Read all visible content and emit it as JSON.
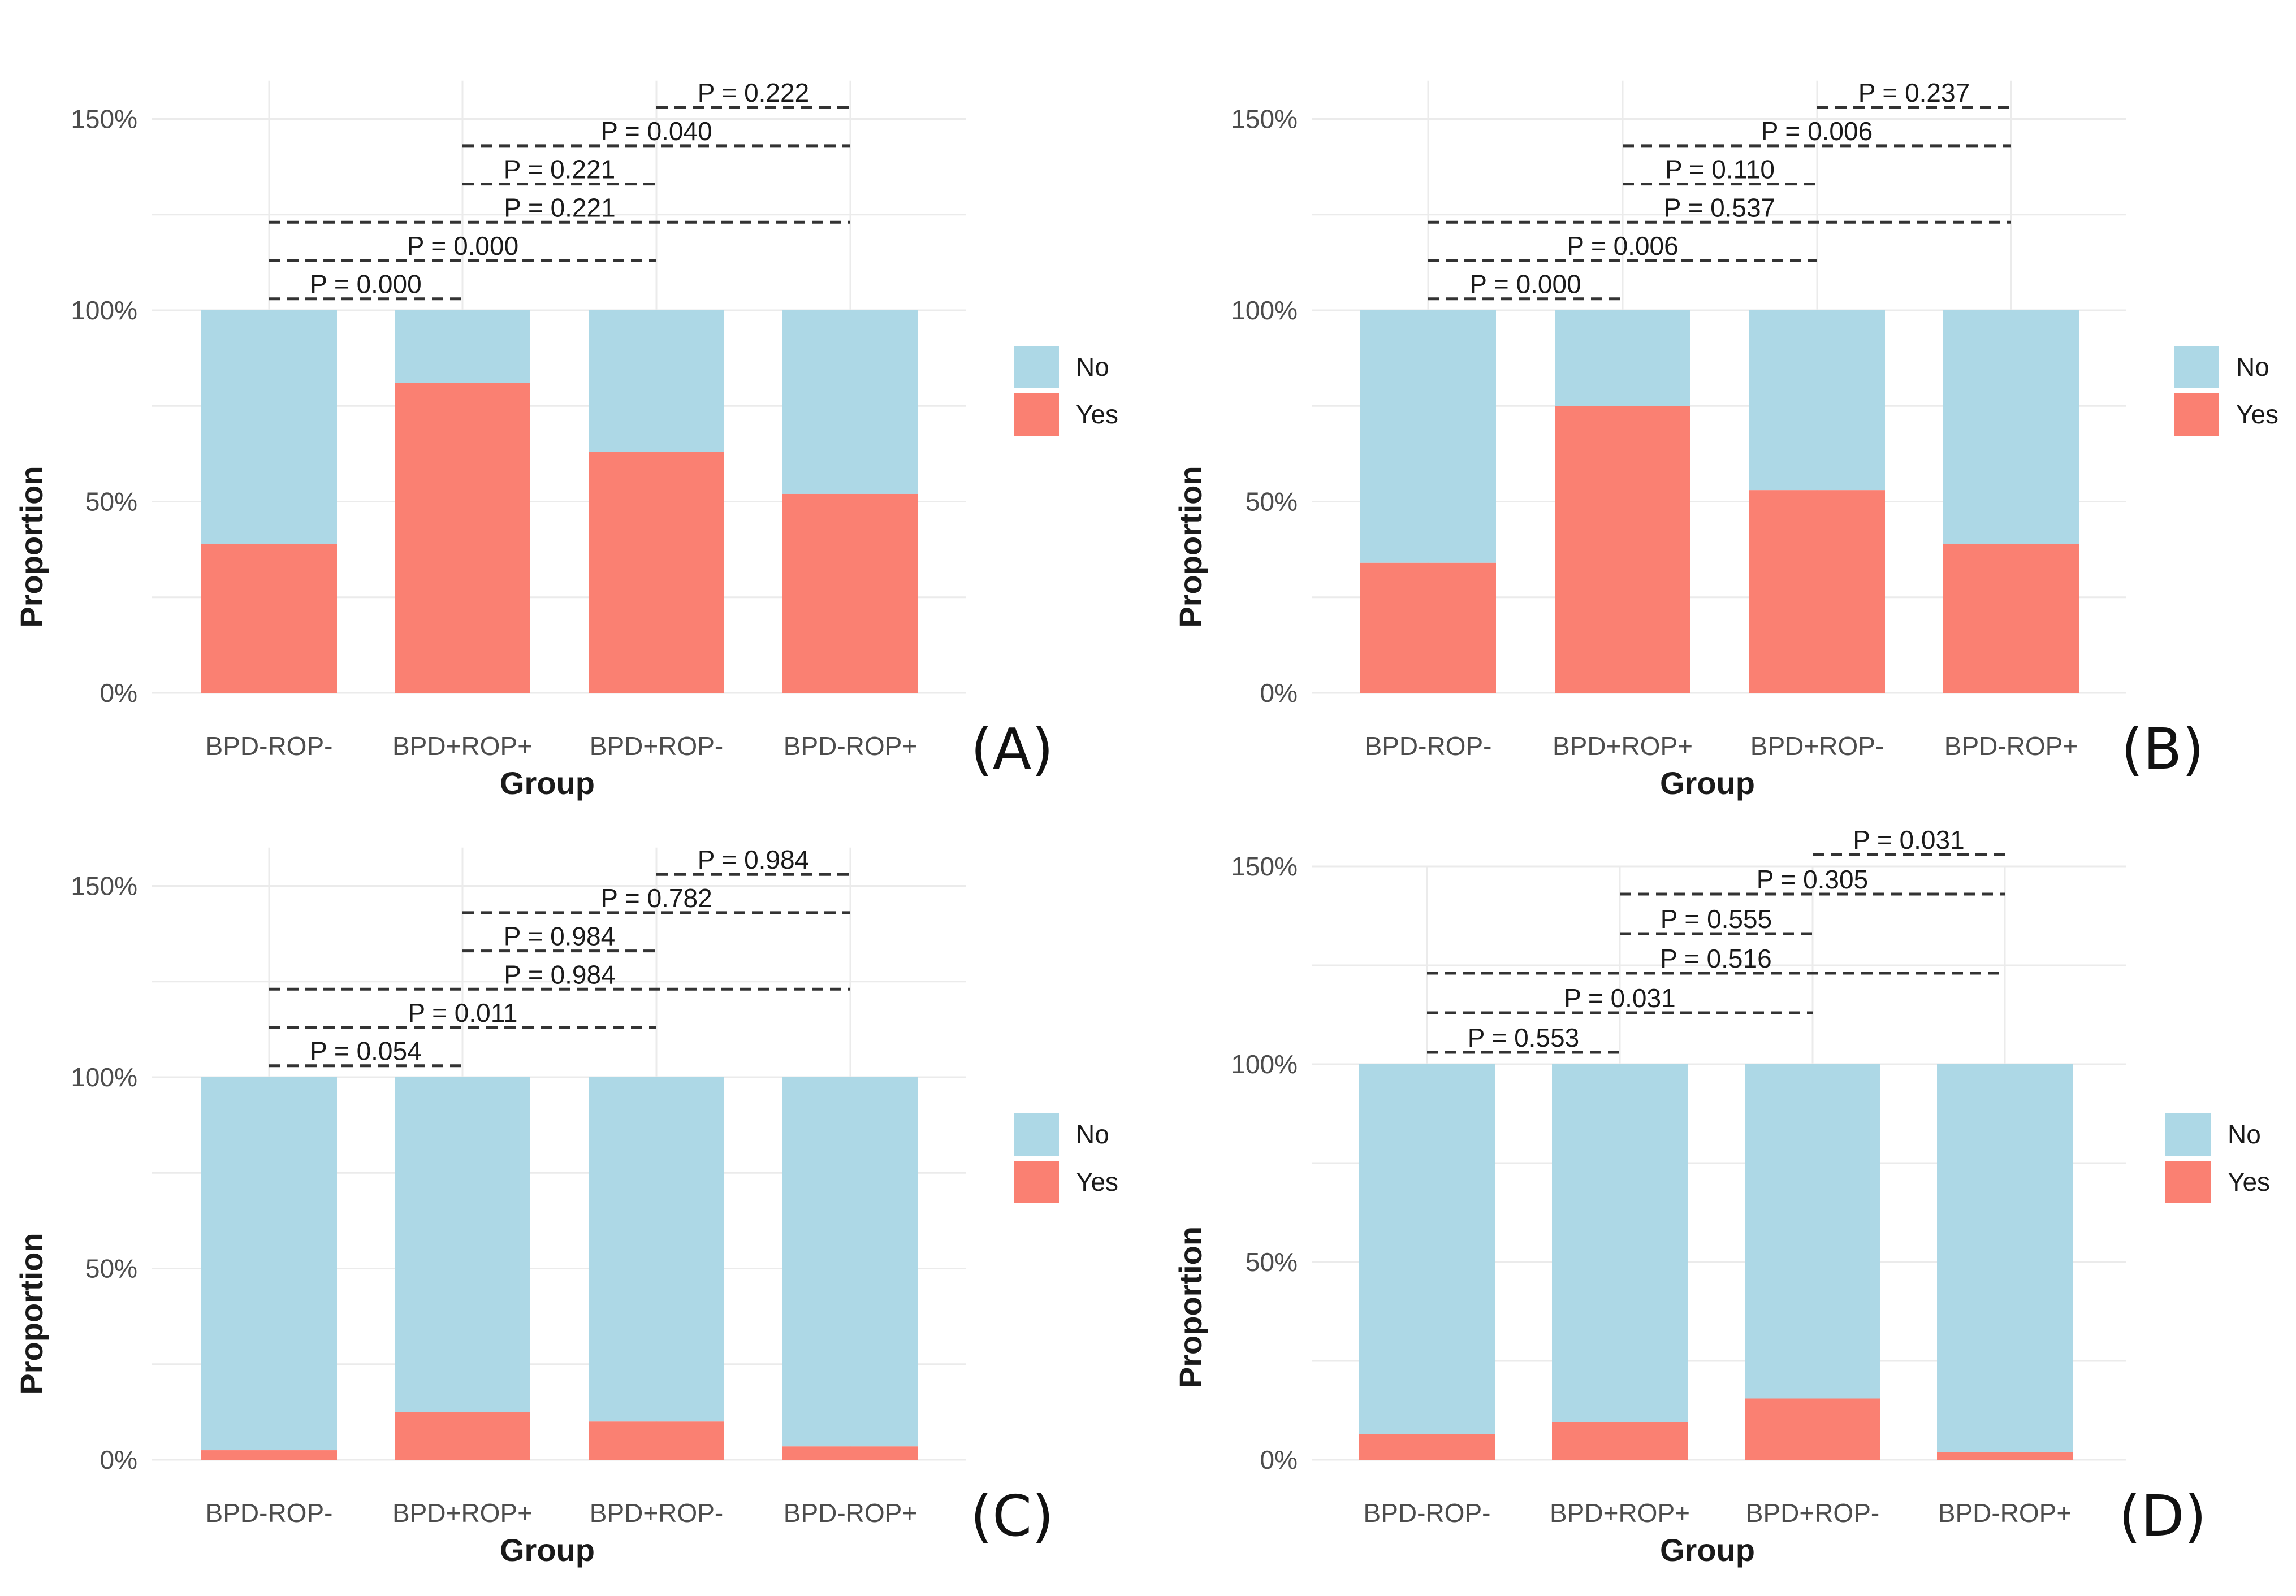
{
  "colors": {
    "no": "#add8e6",
    "yes": "#fa8072"
  },
  "chart_data": [
    {
      "type": "bar",
      "stacked": true,
      "panel_label": "(A)",
      "xlabel": "Group",
      "ylabel": "Proportion",
      "categories": [
        "BPD-ROP-",
        "BPD+ROP+",
        "BPD+ROP-",
        "BPD-ROP+"
      ],
      "ylim": [
        0,
        1.6
      ],
      "yticks": [
        "0%",
        "50%",
        "100%",
        "150%"
      ],
      "series": [
        {
          "name": "Yes",
          "values": [
            0.39,
            0.81,
            0.63,
            0.52
          ]
        },
        {
          "name": "No",
          "values": [
            0.61,
            0.19,
            0.37,
            0.48
          ]
        }
      ],
      "legend": {
        "position": "right",
        "labels": [
          "No",
          "Yes"
        ]
      },
      "comparisons": [
        {
          "from": "BPD-ROP-",
          "to": "BPD+ROP+",
          "label": "P = 0.000"
        },
        {
          "from": "BPD-ROP-",
          "to": "BPD+ROP-",
          "label": "P = 0.000"
        },
        {
          "from": "BPD-ROP-",
          "to": "BPD-ROP+",
          "label": "P = 0.221"
        },
        {
          "from": "BPD+ROP+",
          "to": "BPD+ROP-",
          "label": "P = 0.221"
        },
        {
          "from": "BPD+ROP+",
          "to": "BPD-ROP+",
          "label": "P = 0.040"
        },
        {
          "from": "BPD+ROP-",
          "to": "BPD-ROP+",
          "label": "P = 0.222"
        }
      ]
    },
    {
      "type": "bar",
      "stacked": true,
      "panel_label": "(B)",
      "xlabel": "Group",
      "ylabel": "Proportion",
      "categories": [
        "BPD-ROP-",
        "BPD+ROP+",
        "BPD+ROP-",
        "BPD-ROP+"
      ],
      "ylim": [
        0,
        1.6
      ],
      "yticks": [
        "0%",
        "50%",
        "100%",
        "150%"
      ],
      "series": [
        {
          "name": "Yes",
          "values": [
            0.34,
            0.75,
            0.53,
            0.39
          ]
        },
        {
          "name": "No",
          "values": [
            0.66,
            0.25,
            0.47,
            0.61
          ]
        }
      ],
      "legend": {
        "position": "right",
        "labels": [
          "No",
          "Yes"
        ]
      },
      "comparisons": [
        {
          "from": "BPD-ROP-",
          "to": "BPD+ROP+",
          "label": "P = 0.000"
        },
        {
          "from": "BPD-ROP-",
          "to": "BPD+ROP-",
          "label": "P = 0.006"
        },
        {
          "from": "BPD-ROP-",
          "to": "BPD-ROP+",
          "label": "P = 0.537"
        },
        {
          "from": "BPD+ROP+",
          "to": "BPD+ROP-",
          "label": "P = 0.110"
        },
        {
          "from": "BPD+ROP+",
          "to": "BPD-ROP+",
          "label": "P = 0.006"
        },
        {
          "from": "BPD+ROP-",
          "to": "BPD-ROP+",
          "label": "P = 0.237"
        }
      ]
    },
    {
      "type": "bar",
      "stacked": true,
      "panel_label": "(C)",
      "xlabel": "Group",
      "ylabel": "Proportion",
      "categories": [
        "BPD-ROP-",
        "BPD+ROP+",
        "BPD+ROP-",
        "BPD-ROP+"
      ],
      "ylim": [
        0,
        1.6
      ],
      "yticks": [
        "0%",
        "50%",
        "100%",
        "150%"
      ],
      "series": [
        {
          "name": "Yes",
          "values": [
            0.025,
            0.125,
            0.1,
            0.035
          ]
        },
        {
          "name": "No",
          "values": [
            0.975,
            0.875,
            0.9,
            0.965
          ]
        }
      ],
      "legend": {
        "position": "right",
        "labels": [
          "No",
          "Yes"
        ]
      },
      "comparisons": [
        {
          "from": "BPD-ROP-",
          "to": "BPD+ROP+",
          "label": "P = 0.054"
        },
        {
          "from": "BPD-ROP-",
          "to": "BPD+ROP-",
          "label": "P = 0.011"
        },
        {
          "from": "BPD-ROP-",
          "to": "BPD-ROP+",
          "label": "P = 0.984"
        },
        {
          "from": "BPD+ROP+",
          "to": "BPD+ROP-",
          "label": "P = 0.984"
        },
        {
          "from": "BPD+ROP+",
          "to": "BPD-ROP+",
          "label": "P = 0.782"
        },
        {
          "from": "BPD+ROP-",
          "to": "BPD-ROP+",
          "label": "P = 0.984"
        }
      ]
    },
    {
      "type": "bar",
      "stacked": true,
      "panel_label": "(D)",
      "xlabel": "Group",
      "ylabel": "Proportion",
      "categories": [
        "BPD-ROP-",
        "BPD+ROP+",
        "BPD+ROP-",
        "BPD-ROP+"
      ],
      "ylim": [
        0,
        1.5
      ],
      "yticks": [
        "0%",
        "50%",
        "100%",
        "150%"
      ],
      "series": [
        {
          "name": "Yes",
          "values": [
            0.065,
            0.095,
            0.155,
            0.02
          ]
        },
        {
          "name": "No",
          "values": [
            0.935,
            0.905,
            0.845,
            0.98
          ]
        }
      ],
      "legend": {
        "position": "right",
        "labels": [
          "No",
          "Yes"
        ]
      },
      "comparisons": [
        {
          "from": "BPD-ROP-",
          "to": "BPD+ROP+",
          "label": "P = 0.553"
        },
        {
          "from": "BPD-ROP-",
          "to": "BPD+ROP-",
          "label": "P = 0.031"
        },
        {
          "from": "BPD-ROP-",
          "to": "BPD-ROP+",
          "label": "P = 0.516"
        },
        {
          "from": "BPD+ROP+",
          "to": "BPD+ROP-",
          "label": "P = 0.555"
        },
        {
          "from": "BPD+ROP+",
          "to": "BPD-ROP+",
          "label": "P = 0.305"
        },
        {
          "from": "BPD+ROP-",
          "to": "BPD-ROP+",
          "label": "P = 0.031"
        }
      ]
    }
  ]
}
